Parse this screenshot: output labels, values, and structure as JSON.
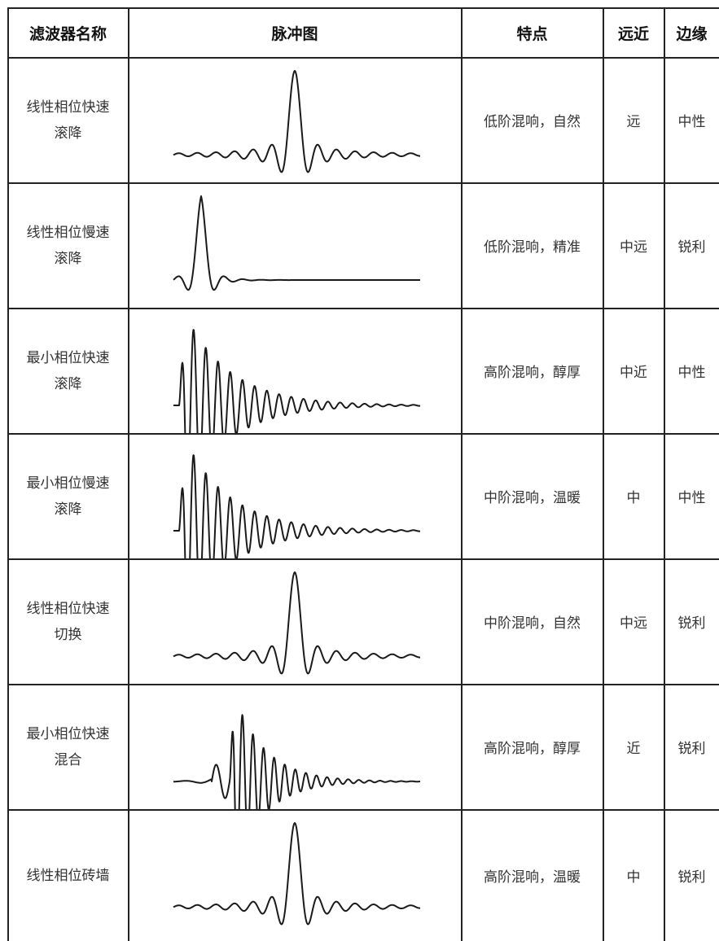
{
  "table": {
    "headers": {
      "name": "滤波器名称",
      "pulse": "脉冲图",
      "feature": "特点",
      "distance": "远近",
      "edge": "边缘"
    },
    "rows": [
      {
        "name_line1": "线性相位快速",
        "name_line2": "滚降",
        "pulse": "linear-fast-rolloff",
        "feature": "低阶混响，自然",
        "distance": "远",
        "edge": "中性"
      },
      {
        "name_line1": "线性相位慢速",
        "name_line2": "滚降",
        "pulse": "linear-slow-rolloff",
        "feature": "低阶混响，精准",
        "distance": "中远",
        "edge": "锐利"
      },
      {
        "name_line1": "最小相位快速",
        "name_line2": "滚降",
        "pulse": "minimum-fast-rolloff",
        "feature": "高阶混响，醇厚",
        "distance": "中近",
        "edge": "中性"
      },
      {
        "name_line1": "最小相位慢速",
        "name_line2": "滚降",
        "pulse": "minimum-slow-rolloff",
        "feature": "中阶混响，温暖",
        "distance": "中",
        "edge": "中性"
      },
      {
        "name_line1": "线性相位快速",
        "name_line2": "切换",
        "pulse": "linear-fast-switch",
        "feature": "中阶混响，自然",
        "distance": "中远",
        "edge": "锐利"
      },
      {
        "name_line1": "最小相位快速",
        "name_line2": "混合",
        "pulse": "minimum-fast-hybrid",
        "feature": "高阶混响，醇厚",
        "distance": "近",
        "edge": "锐利"
      },
      {
        "name_line1": "线性相位砖墙",
        "name_line2": "",
        "pulse": "linear-brickwall",
        "feature": "高阶混响，温暖",
        "distance": "中",
        "edge": "锐利"
      }
    ]
  }
}
